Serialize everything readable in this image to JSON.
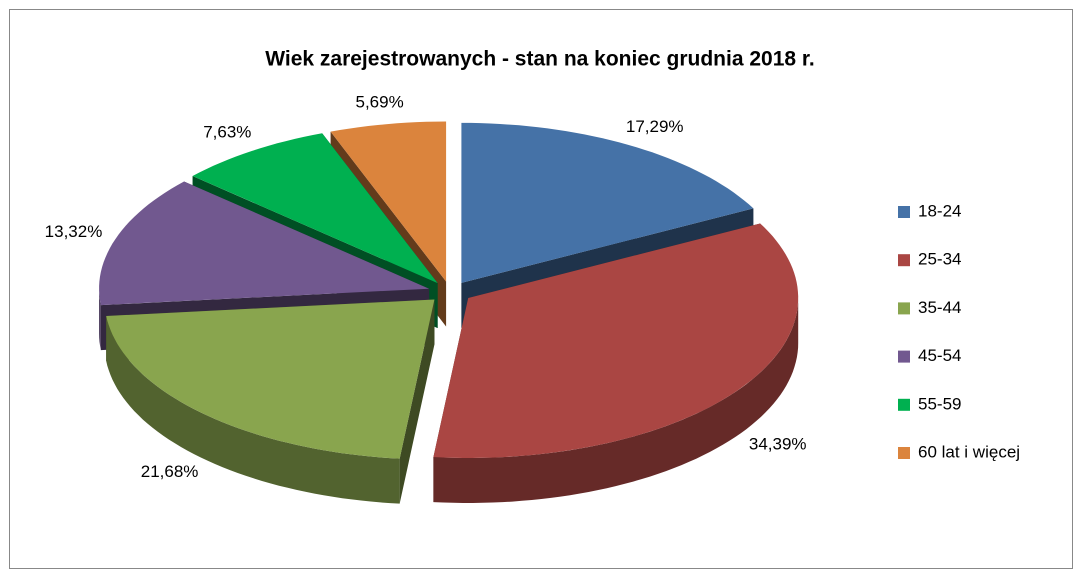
{
  "chart_data": {
    "type": "pie3d",
    "title": "Wiek zarejestrowanych - stan na koniec grudnia 2018 r.",
    "categories": [
      "18-24",
      "25-34",
      "35-44",
      "45-54",
      "55-59",
      "60 lat i więcej"
    ],
    "values": [
      17.29,
      34.39,
      21.68,
      13.32,
      7.63,
      5.69
    ],
    "value_labels": [
      "17,29%",
      "34,39%",
      "21,68%",
      "13,32%",
      "7,63%",
      "5,69%"
    ],
    "colors": [
      "#4572a7",
      "#aa4643",
      "#89a54e",
      "#71588f",
      "#00b050",
      "#db843d"
    ],
    "legend": "right"
  }
}
